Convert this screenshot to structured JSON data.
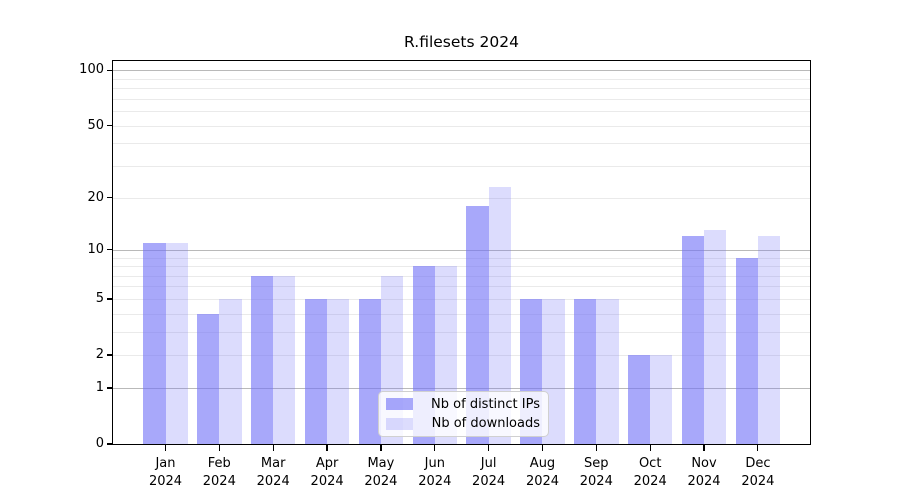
{
  "chart_data": {
    "type": "bar",
    "title": "R.filesets 2024",
    "categories": [
      "Jan 2024",
      "Feb 2024",
      "Mar 2024",
      "Apr 2024",
      "May 2024",
      "Jun 2024",
      "Jul 2024",
      "Aug 2024",
      "Sep 2024",
      "Oct 2024",
      "Nov 2024",
      "Dec 2024"
    ],
    "series": [
      {
        "name": "Nb of distinct IPs",
        "color": "rgba(115,115,247,0.62)",
        "color_hex_on_white": "#a8a8fa",
        "values": [
          11,
          4,
          7,
          5,
          5,
          8,
          18,
          5,
          5,
          2,
          12,
          9
        ]
      },
      {
        "name": "Nb of downloads",
        "color": "rgba(115,115,247,0.25)",
        "color_hex_on_white": "#dadaf8",
        "values": [
          11,
          5,
          7,
          5,
          7,
          8,
          23,
          5,
          5,
          2,
          13,
          12
        ]
      }
    ],
    "xlabel": "",
    "ylabel": "",
    "y_scale": "log10(value+1)",
    "ylim": [
      0,
      112
    ],
    "y_ticks": [
      0,
      1,
      2,
      5,
      10,
      20,
      50,
      100
    ],
    "y_major_gridlines": [
      1,
      10,
      100
    ],
    "y_minor_gridlines": [
      2,
      3,
      4,
      5,
      6,
      7,
      8,
      9,
      20,
      30,
      40,
      50,
      60,
      70,
      80,
      90
    ],
    "grid": "horizontal",
    "legend_position": "lower center",
    "colors": {
      "bar_base": "#7373f7",
      "major_grid": "#b9b9b9",
      "minor_grid": "#eaeaea",
      "axis": "#000000",
      "legend_border": "#d0d0d0",
      "background": "#ffffff"
    }
  }
}
